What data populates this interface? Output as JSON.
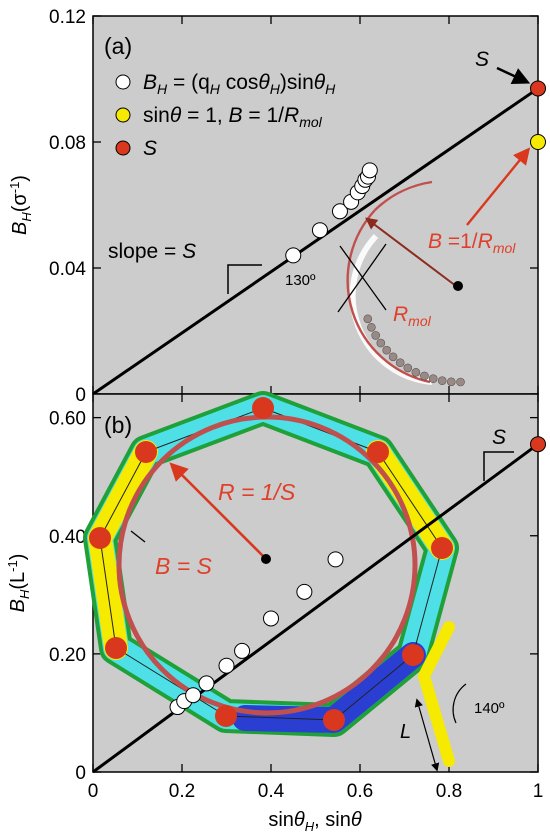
{
  "colors": {
    "panel_bg": "#cccccc",
    "line": "#000000",
    "red": "#d9381e",
    "yellow": "#f5ea00",
    "white": "#ffffff",
    "arc": "#c0504d",
    "annot": "#e0402a"
  },
  "x_axis": {
    "label_main": "sin",
    "label_theta": "θ",
    "label_sub": "H",
    "label_mid": ", sin",
    "ticks": [
      {
        "v": 0,
        "t": "0"
      },
      {
        "v": 0.2,
        "t": "0.2"
      },
      {
        "v": 0.4,
        "t": "0.4"
      },
      {
        "v": 0.6,
        "t": "0.6"
      },
      {
        "v": 0.8,
        "t": "0.8"
      },
      {
        "v": 1,
        "t": "1"
      }
    ]
  },
  "chart_data": [
    {
      "type": "scatter",
      "panel_label": "(a)",
      "ylabel_main": "B",
      "ylabel_sub": "H",
      "ylabel_unit": "(σ",
      "ylabel_sup": "-1",
      "ylabel_close": ")",
      "xlim": [
        0,
        1
      ],
      "ylim": [
        0,
        0.12
      ],
      "y_ticks": [
        {
          "v": 0,
          "t": "0"
        },
        {
          "v": 0.04,
          "t": "0.04"
        },
        {
          "v": 0.08,
          "t": "0.08"
        },
        {
          "v": 0.12,
          "t": "0.12"
        }
      ],
      "legend": [
        {
          "marker": "white",
          "t1": "B",
          "t1sub": "H",
          "t2": " = (q",
          "t2sub": "H",
          "t3": " cos",
          "t3it": "θ",
          "t3sub": "H",
          "t4": ")sin",
          "t4it": "θ",
          "t4sub": "H"
        },
        {
          "marker": "yellow",
          "t1": "sin",
          "t1it": "θ",
          "t2": " = 1, ",
          "t2it": "B",
          "t3": " = 1/",
          "t3it": "R",
          "t3sub": "mol"
        },
        {
          "marker": "red",
          "t1": "",
          "t1it": "S"
        }
      ],
      "series": [
        {
          "marker": "white",
          "points": [
            [
              0.45,
              0.044
            ],
            [
              0.51,
              0.052
            ],
            [
              0.555,
              0.058
            ],
            [
              0.58,
              0.061
            ],
            [
              0.595,
              0.064
            ],
            [
              0.605,
              0.066
            ],
            [
              0.612,
              0.068
            ],
            [
              0.618,
              0.069
            ],
            [
              0.622,
              0.071
            ]
          ]
        },
        {
          "marker": "yellow",
          "points": [
            [
              1.0,
              0.08
            ]
          ]
        },
        {
          "marker": "red",
          "points": [
            [
              1.0,
              0.097
            ]
          ]
        }
      ],
      "fit_line": {
        "x": [
          0,
          1
        ],
        "y": [
          0,
          0.097
        ]
      },
      "annotations": {
        "slope_label": "slope = ",
        "slope_var": "S",
        "angle": "130º",
        "b_eq": "B",
        "b_eq_rest": " =1/",
        "b_eq_r": "R",
        "b_eq_sub": "mol",
        "rmol": "R",
        "rmol_sub": "mol",
        "s_label": "S"
      }
    },
    {
      "type": "scatter",
      "panel_label": "(b)",
      "ylabel_main": "B",
      "ylabel_sub": "H",
      "ylabel_unit": "(L",
      "ylabel_sup": "-1",
      "ylabel_close": ")",
      "xlim": [
        0,
        1
      ],
      "ylim": [
        0,
        0.64
      ],
      "y_ticks": [
        {
          "v": 0,
          "t": "0"
        },
        {
          "v": 0.2,
          "t": "0.20"
        },
        {
          "v": 0.4,
          "t": "0.40"
        },
        {
          "v": 0.6,
          "t": "0.60"
        }
      ],
      "series": [
        {
          "marker": "white",
          "points": [
            [
              0.19,
              0.11
            ],
            [
              0.205,
              0.12
            ],
            [
              0.225,
              0.13
            ],
            [
              0.255,
              0.15
            ],
            [
              0.3,
              0.18
            ],
            [
              0.335,
              0.205
            ],
            [
              0.4,
              0.26
            ],
            [
              0.475,
              0.305
            ],
            [
              0.545,
              0.36
            ]
          ]
        },
        {
          "marker": "red",
          "points": [
            [
              1.0,
              0.555
            ]
          ]
        }
      ],
      "fit_line": {
        "x": [
          0,
          1
        ],
        "y": [
          0,
          0.555
        ]
      },
      "annotations": {
        "r_eq": "R = 1/S",
        "b_eq": "B = S",
        "s_label": "S",
        "angle": "140º",
        "l_label": "L"
      }
    }
  ]
}
